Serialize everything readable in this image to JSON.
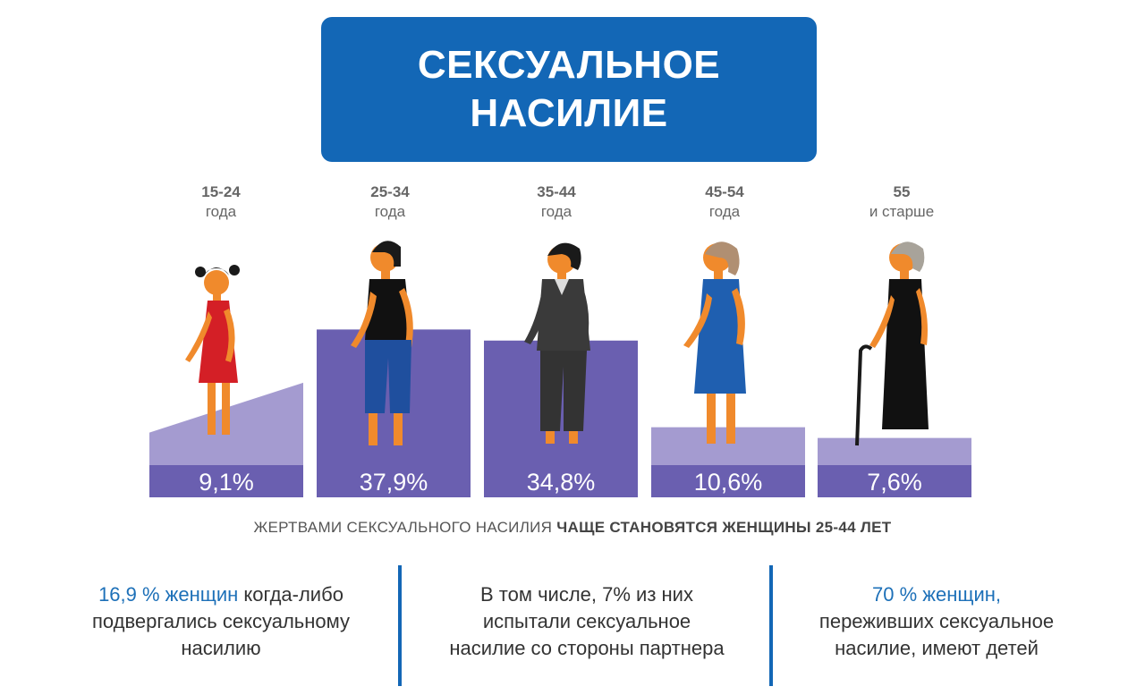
{
  "title": {
    "line1": "СЕКСУАЛЬНОЕ",
    "line2": "НАСИЛИЕ"
  },
  "age_groups": [
    {
      "top": "15-24",
      "sub": "года"
    },
    {
      "top": "25-34",
      "sub": "года"
    },
    {
      "top": "35-44",
      "sub": "года"
    },
    {
      "top": "45-54",
      "sub": "года"
    },
    {
      "top": "55",
      "sub": "и старше"
    }
  ],
  "chart_data": {
    "type": "area",
    "categories": [
      "15-24",
      "25-34",
      "35-44",
      "45-54",
      "55 и старше"
    ],
    "values": [
      9.1,
      37.9,
      34.8,
      10.6,
      7.6
    ],
    "value_labels": [
      "9,1%",
      "37,9%",
      "34,8%",
      "10,6%",
      "7,6%"
    ],
    "unit": "%",
    "title": "СЕКСУАЛЬНОЕ НАСИЛИЕ"
  },
  "caption": {
    "normal": "ЖЕРТВАМИ СЕКСУАЛЬНОГО НАСИЛИЯ",
    "bold": "ЧАЩЕ СТАНОВЯТСЯ ЖЕНЩИНЫ 25-44 ЛЕТ"
  },
  "facts": [
    {
      "highlight": "16,9 % женщин",
      "line1_rest": " когда-либо",
      "line2": "подвергались сексуальному",
      "line3": "насилию"
    },
    {
      "line1": "В том числе, 7% из них",
      "line2": "испытали сексуальное",
      "line3": "насилие со стороны партнера"
    },
    {
      "highlight": "70 % женщин,",
      "line2": "переживших  сексуальное",
      "line3": "насилие, имеют детей"
    }
  ],
  "colors": {
    "title_bg": "#1367b6",
    "highlight_text": "#1d70b8",
    "band_dark": "#6a5fb0",
    "band_light": "#a49bd0",
    "divider": "#1367b6"
  }
}
